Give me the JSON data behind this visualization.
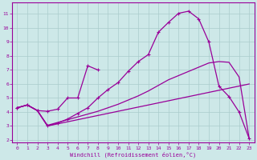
{
  "xlabel": "Windchill (Refroidissement éolien,°C)",
  "bg_color": "#cde8e8",
  "line_color": "#990099",
  "grid_color": "#aacccc",
  "xlim": [
    -0.5,
    23.5
  ],
  "ylim": [
    1.8,
    11.8
  ],
  "xticks": [
    0,
    1,
    2,
    3,
    4,
    5,
    6,
    7,
    8,
    9,
    10,
    11,
    12,
    13,
    14,
    15,
    16,
    17,
    18,
    19,
    20,
    21,
    22,
    23
  ],
  "yticks": [
    2,
    3,
    4,
    5,
    6,
    7,
    8,
    9,
    10,
    11
  ],
  "line1_x": [
    0,
    1,
    2,
    3,
    4,
    5,
    6,
    7,
    8,
    9,
    10,
    11,
    12,
    13,
    14,
    15,
    16,
    17,
    18,
    19,
    20,
    21,
    22,
    23
  ],
  "line1_y": [
    4.3,
    4.5,
    4.1,
    3.0,
    3.15,
    3.3,
    3.45,
    3.6,
    3.75,
    3.9,
    4.05,
    4.2,
    4.35,
    4.5,
    4.65,
    4.8,
    4.95,
    5.1,
    5.25,
    5.4,
    5.55,
    5.7,
    5.85,
    6.0
  ],
  "line2_x": [
    0,
    1,
    2,
    3,
    4,
    5,
    6,
    7,
    8,
    9,
    10,
    11,
    12,
    13,
    14,
    15,
    16,
    17,
    18,
    19,
    20,
    21,
    22,
    23
  ],
  "line2_y": [
    4.3,
    4.5,
    4.1,
    3.05,
    3.25,
    3.45,
    3.65,
    3.85,
    4.05,
    4.3,
    4.55,
    4.85,
    5.15,
    5.5,
    5.9,
    6.3,
    6.6,
    6.9,
    7.2,
    7.5,
    7.6,
    7.55,
    6.5,
    2.1
  ],
  "line3_x": [
    0,
    1,
    2,
    3,
    4,
    5,
    6,
    7,
    8
  ],
  "line3_y": [
    4.3,
    4.5,
    4.1,
    4.05,
    4.2,
    5.0,
    5.0,
    7.3,
    7.0
  ],
  "line4_x": [
    0,
    1,
    2,
    3,
    4,
    5,
    6,
    7,
    8,
    9,
    10,
    11,
    12,
    13,
    14,
    15,
    16,
    17,
    18,
    19,
    20,
    21,
    22,
    23
  ],
  "line4_y": [
    4.3,
    4.5,
    4.1,
    3.0,
    3.2,
    3.5,
    3.9,
    4.3,
    5.0,
    5.6,
    6.1,
    6.9,
    7.6,
    8.1,
    9.7,
    10.4,
    11.05,
    11.2,
    10.65,
    9.0,
    5.85,
    5.1,
    4.0,
    2.1
  ]
}
